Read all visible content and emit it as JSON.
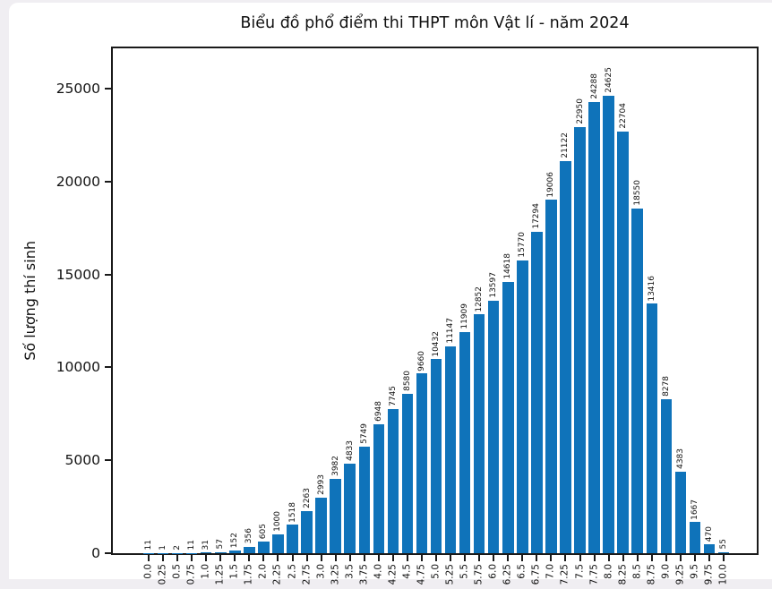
{
  "page": {
    "background_color": "#f0eef2",
    "card_color": "#ffffff"
  },
  "chart_data": {
    "type": "bar",
    "title": "Biểu đồ phổ điểm thi THPT môn Vật lí - năm 2024",
    "xlabel": "",
    "ylabel": "Số lượng thí sinh",
    "categories": [
      "0.0",
      "0.25",
      "0.5",
      "0.75",
      "1.0",
      "1.25",
      "1.5",
      "1.75",
      "2.0",
      "2.25",
      "2.5",
      "2.75",
      "3.0",
      "3.25",
      "3.5",
      "3.75",
      "4.0",
      "4.25",
      "4.5",
      "4.75",
      "5.0",
      "5.25",
      "5.5",
      "5.75",
      "6.0",
      "6.25",
      "6.5",
      "6.75",
      "7.0",
      "7.25",
      "7.5",
      "7.75",
      "8.0",
      "8.25",
      "8.5",
      "8.75",
      "9.0",
      "9.25",
      "9.5",
      "9.75",
      "10.0"
    ],
    "values": [
      11,
      1,
      2,
      11,
      31,
      57,
      152,
      356,
      605,
      1000,
      1518,
      2263,
      2993,
      3982,
      4833,
      5749,
      6948,
      7745,
      8580,
      9660,
      10432,
      11147,
      11909,
      12852,
      13597,
      14618,
      15770,
      17294,
      19006,
      21122,
      22950,
      24288,
      24625,
      22704,
      18550,
      13416,
      8278,
      4383,
      1667,
      470,
      55
    ],
    "bar_labels_shown": true,
    "yticks": [
      0,
      5000,
      10000,
      15000,
      20000,
      25000
    ],
    "ytick_labels": [
      "0",
      "5000",
      "10000",
      "15000",
      "20000",
      "25000"
    ],
    "ylim": [
      0,
      27300
    ],
    "grid": false,
    "legend_position": "none",
    "bar_color": "#0f73ba",
    "text_color": "#111111",
    "axis_color": "#1a1a1a"
  }
}
